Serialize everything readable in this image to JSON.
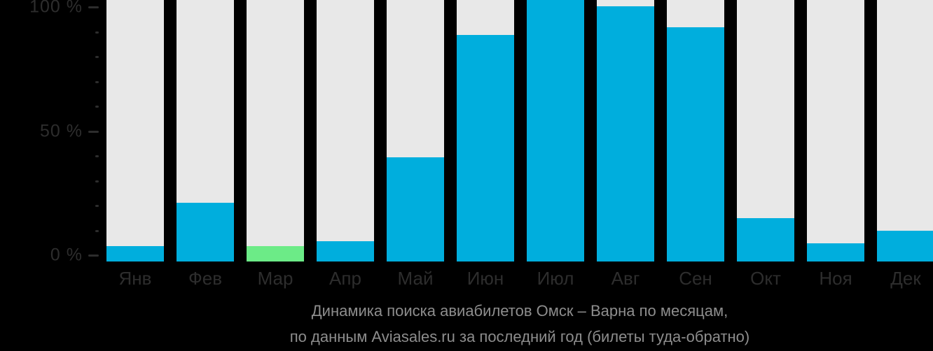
{
  "chart_data": {
    "type": "bar",
    "title_lines": [
      "Динамика поиска авиабилетов Омск – Варна по месяцам,",
      "по данным Aviasales.ru за последний год (билеты туда-обратно)"
    ],
    "categories": [
      "Янв",
      "Фев",
      "Мар",
      "Апр",
      "Май",
      "Июн",
      "Июл",
      "Авг",
      "Сен",
      "Окт",
      "Ноя",
      "Дек"
    ],
    "category_codes": [
      "jan",
      "feb",
      "mar",
      "apr",
      "may",
      "jun",
      "jul",
      "aug",
      "sep",
      "oct",
      "nov",
      "dec"
    ],
    "values": [
      6,
      23,
      6,
      8,
      41,
      89,
      103,
      100,
      92,
      17,
      7,
      12
    ],
    "unit": "%",
    "highlight": {
      "index": 2,
      "color": "#6ceb87"
    },
    "clipped_at_top": [
      "Июл"
    ],
    "y_axis": {
      "ylim": [
        0,
        100
      ],
      "minor_tick_step": 10,
      "ticks_labeled": [
        {
          "value": 0,
          "label": "0 %"
        },
        {
          "value": 50,
          "label": "50 %"
        },
        {
          "value": 100,
          "label": "100 %"
        }
      ]
    },
    "grid": false,
    "legend": false,
    "colors": {
      "bar": "#00aedd",
      "highlight": "#6ceb87",
      "track": "#e8e8e8",
      "background": "#000000",
      "axis_text": "#2d2d2d",
      "caption_text": "#8d8d8d"
    }
  }
}
